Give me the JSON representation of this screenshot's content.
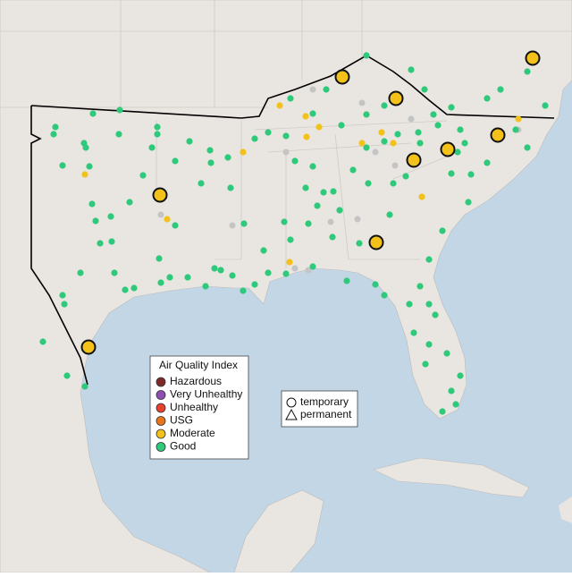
{
  "legend": {
    "title": "Air Quality Index",
    "items": [
      {
        "label": "Hazardous",
        "color": "#7e2a2a"
      },
      {
        "label": "Very Unhealthy",
        "color": "#8f4fb0"
      },
      {
        "label": "Unhealthy",
        "color": "#e8402f"
      },
      {
        "label": "USG",
        "color": "#e8741b"
      },
      {
        "label": "Moderate",
        "color": "#f2c21b"
      },
      {
        "label": "Good",
        "color": "#2ec97a"
      }
    ]
  },
  "shape_legend": {
    "items": [
      "temporary",
      "permanent"
    ]
  }
}
